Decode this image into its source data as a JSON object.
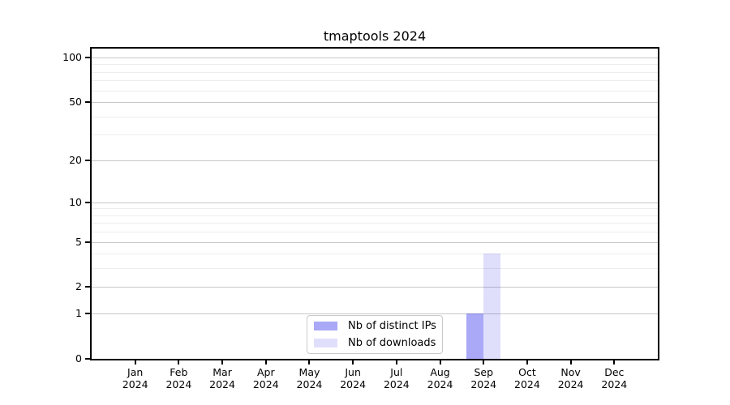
{
  "chart_data": {
    "type": "bar",
    "title": "tmaptools 2024",
    "categories": [
      "Jan 2024",
      "Feb 2024",
      "Mar 2024",
      "Apr 2024",
      "May 2024",
      "Jun 2024",
      "Jul 2024",
      "Aug 2024",
      "Sep 2024",
      "Oct 2024",
      "Nov 2024",
      "Dec 2024"
    ],
    "series": [
      {
        "name": "Nb of distinct IPs",
        "fill": "rgba(30,30,235,0.38)",
        "values": [
          0,
          0,
          0,
          0,
          0,
          0,
          0,
          0,
          1,
          0,
          0,
          0
        ]
      },
      {
        "name": "Nb of downloads",
        "fill": "rgba(30,30,235,0.14)",
        "values": [
          0,
          0,
          0,
          0,
          0,
          0,
          0,
          0,
          4,
          0,
          0,
          0
        ]
      }
    ],
    "yscale": "log1p",
    "ylim": [
      0,
      115
    ],
    "y_tick_values": [
      0,
      1,
      2,
      5,
      10,
      20,
      50,
      100
    ],
    "y_minor_gridline_values": [
      3,
      4,
      6,
      7,
      8,
      9,
      30,
      40,
      60,
      70,
      80,
      90
    ],
    "grid": "horizontal",
    "legend_position": "lower center",
    "colors": {
      "background": "#ffffff",
      "axis": "#000000",
      "text": "#000000",
      "major_grid": "#c8c8c8",
      "minor_grid": "#ededed",
      "bar_distinct_ips_rendered": "#adadf7",
      "bar_downloads_rendered": "#dcdcf8"
    }
  }
}
